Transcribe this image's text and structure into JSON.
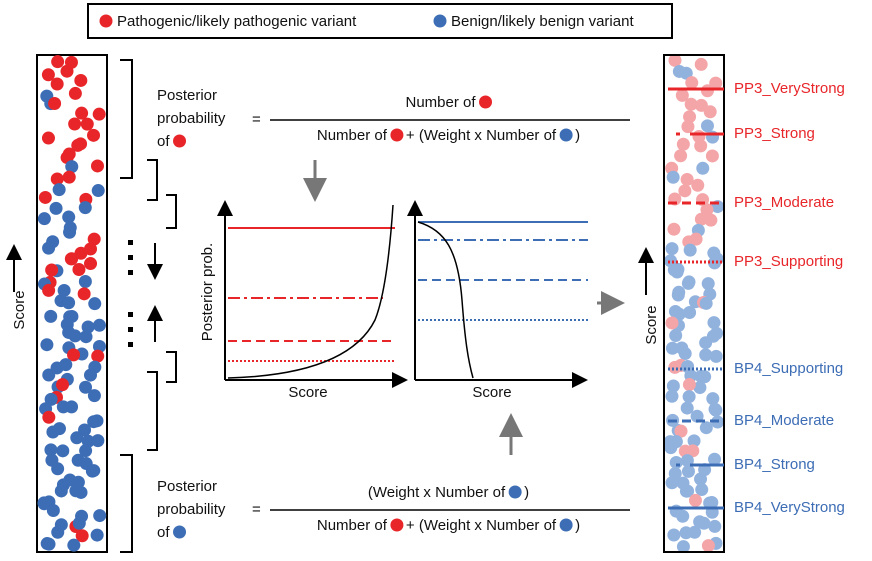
{
  "legend": {
    "items": [
      {
        "label": "Pathogenic/likely pathogenic variant",
        "color": "#e8262a"
      },
      {
        "label": "Benign/likely benign variant",
        "color": "#3d6db5"
      }
    ]
  },
  "left_panel": {
    "axis_label": "Score"
  },
  "formula_pathogenic": {
    "lhs": [
      "Posterior",
      "probability",
      "of"
    ],
    "equals": "=",
    "numerator": [
      "Number of"
    ],
    "denominator": [
      "Number of",
      "+ (Weight x Number of",
      ")"
    ]
  },
  "formula_benign": {
    "lhs": [
      "Posterior",
      "probability",
      "of"
    ],
    "equals": "=",
    "numerator": [
      "(Weight x Number of",
      ")"
    ],
    "denominator": [
      "Number of",
      "+ (Weight x Number of",
      ")"
    ]
  },
  "plots": {
    "y_label": "Posterior prob.",
    "x_labels": [
      "Score",
      "Score"
    ]
  },
  "right_panel": {
    "axis_label": "Score",
    "evidence_labels": [
      "PP3_VeryStrong",
      "PP3_Strong",
      "PP3_Moderate",
      "PP3_Supporting",
      "BP4_Supporting",
      "BP4_Moderate",
      "BP4_Strong",
      "BP4_VeryStrong"
    ]
  }
}
